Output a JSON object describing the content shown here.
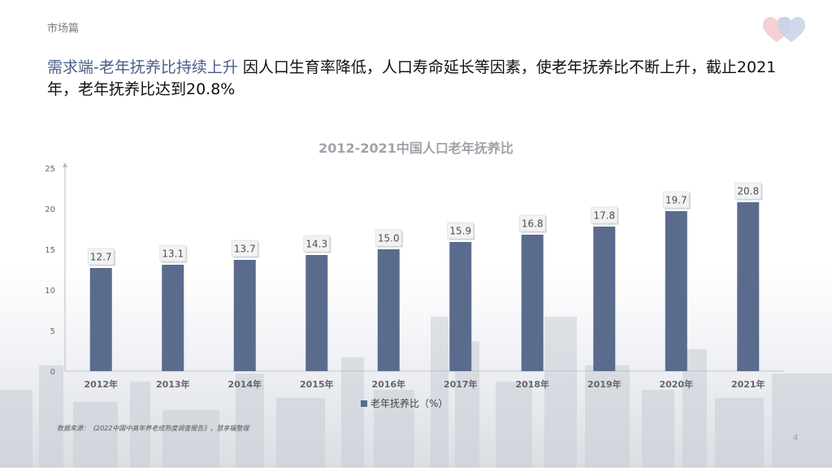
{
  "section_label": "市场篇",
  "headline": {
    "accent": "需求端-老年抚养比持续上升",
    "body": " 因人口生育率降低，人口寿命延长等因素，使老年抚养比不断上升，截止2021年，老年抚养比达到20.8%"
  },
  "chart_data": {
    "type": "bar",
    "title": "2012-2021中国人口老年抚养比",
    "categories": [
      "2012年",
      "2013年",
      "2014年",
      "2015年",
      "2016年",
      "2017年",
      "2018年",
      "2019年",
      "2020年",
      "2021年"
    ],
    "series": [
      {
        "name": "老年抚养比（%）",
        "values": [
          12.7,
          13.1,
          13.7,
          14.3,
          15.0,
          15.9,
          16.8,
          17.8,
          19.7,
          20.8
        ],
        "labels": [
          "12.7",
          "13.1",
          "13.7",
          "14.3",
          "15.0",
          "15.9",
          "16.8",
          "17.8",
          "19.7",
          "20.8"
        ]
      }
    ],
    "ylim": [
      0,
      25
    ],
    "yticks": [
      0,
      5,
      10,
      15,
      20,
      25
    ],
    "xlabel": "",
    "ylabel": "",
    "legend": "bottom",
    "grid": false,
    "colors": {
      "bar": "#5a6b8e",
      "label_bg": "#f2f2f2",
      "title": "#a0a4aa",
      "axis_text": "#666666"
    }
  },
  "source": "数据来源：《2022中国中高年养老成熟度调查报告》，慧享福整理",
  "page_number": "4"
}
